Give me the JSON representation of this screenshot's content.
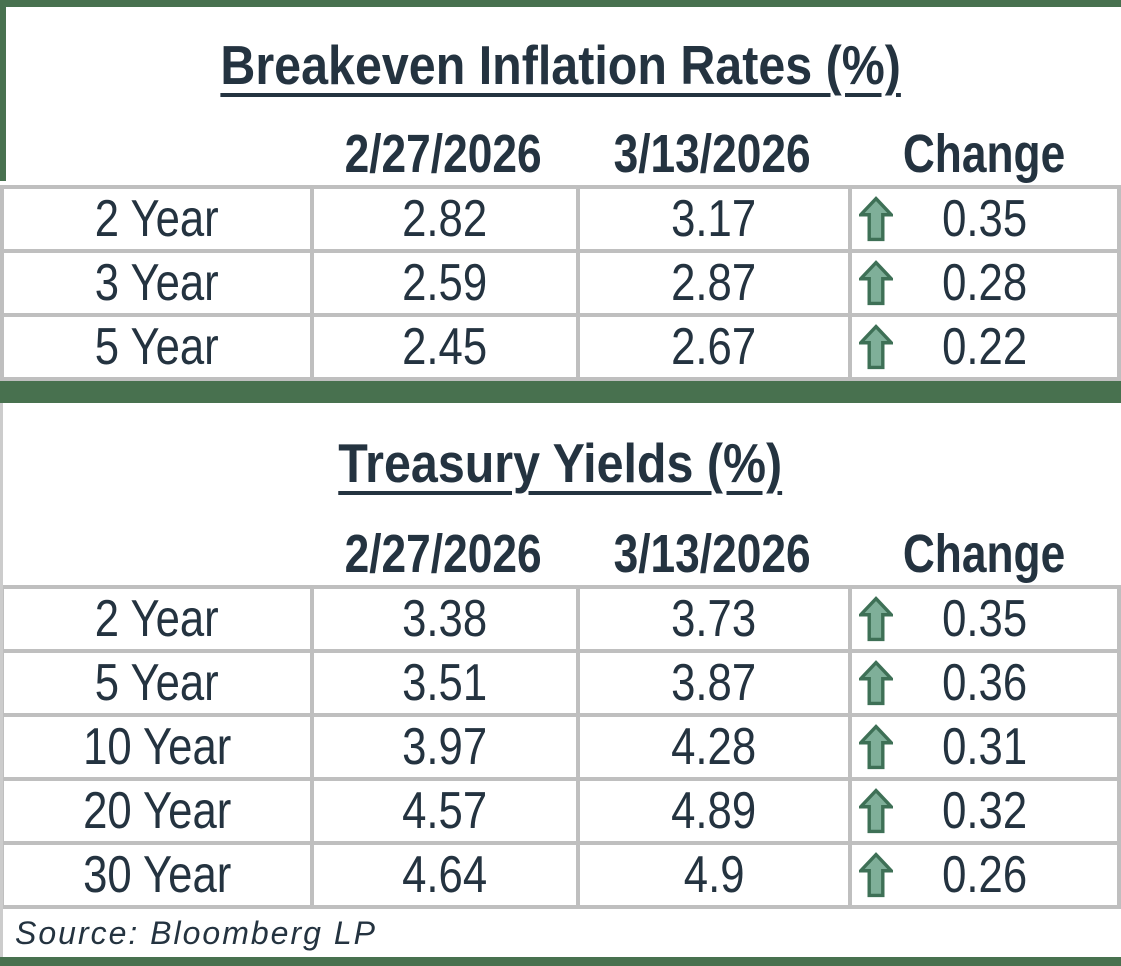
{
  "style": {
    "accent_green": "#48714F",
    "gridline_gray": "#BFBFBF",
    "text_color": "#243340",
    "arrow_fill": "#7FAF99",
    "arrow_outline": "#3E7056",
    "cell_background": "#FFFFFF"
  },
  "chart_data": [
    {
      "type": "table",
      "title": "Breakeven Inflation Rates (%)",
      "columns": [
        "",
        "2/27/2026",
        "3/13/2026",
        "Change"
      ],
      "rows": [
        {
          "label": "2 Year",
          "prev": "2.82",
          "curr": "3.17",
          "change": "0.35",
          "direction": "up"
        },
        {
          "label": "3 Year",
          "prev": "2.59",
          "curr": "2.87",
          "change": "0.28",
          "direction": "up"
        },
        {
          "label": "5 Year",
          "prev": "2.45",
          "curr": "2.67",
          "change": "0.22",
          "direction": "up"
        }
      ]
    },
    {
      "type": "table",
      "title": "Treasury Yields (%)",
      "columns": [
        "",
        "2/27/2026",
        "3/13/2026",
        "Change"
      ],
      "rows": [
        {
          "label": "2 Year",
          "prev": "3.38",
          "curr": "3.73",
          "change": "0.35",
          "direction": "up"
        },
        {
          "label": "5 Year",
          "prev": "3.51",
          "curr": "3.87",
          "change": "0.36",
          "direction": "up"
        },
        {
          "label": "10 Year",
          "prev": "3.97",
          "curr": "4.28",
          "change": "0.31",
          "direction": "up"
        },
        {
          "label": "20 Year",
          "prev": "4.57",
          "curr": "4.89",
          "change": "0.32",
          "direction": "up"
        },
        {
          "label": "30 Year",
          "prev": "4.64",
          "curr": "4.9",
          "change": "0.26",
          "direction": "up"
        }
      ]
    }
  ],
  "source_note": "Source: Bloomberg LP"
}
